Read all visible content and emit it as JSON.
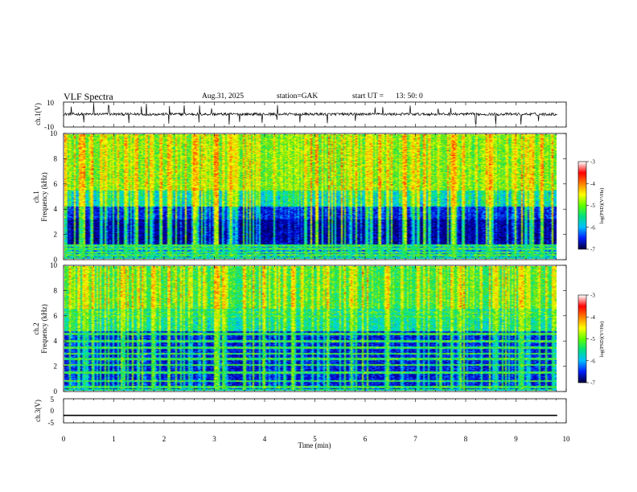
{
  "header": {
    "title": "VLF  Spectra",
    "date": "Aug.31, 2025",
    "station": "station=GAK",
    "start_label": "start  UT  =",
    "start_time": "13: 50: 0"
  },
  "colors": {
    "spectrum_palette": [
      "#000033",
      "#000080",
      "#0000d0",
      "#0050ff",
      "#00c8ff",
      "#00e8a0",
      "#30e030",
      "#a8f000",
      "#ffff00",
      "#ffa000",
      "#ff2000"
    ],
    "colorbar_palette": [
      "#000040",
      "#0020ff",
      "#00c0ff",
      "#00e080",
      "#60ff00",
      "#ffff00",
      "#ff8000",
      "#ff0000",
      "#ffffff"
    ],
    "trace": "#000000"
  },
  "chart_data": [
    {
      "type": "line",
      "panel": "ch1-waveform",
      "ylabel": "ch.1(V)",
      "ylim": [
        -10,
        10
      ],
      "yticks": [
        "10",
        "-10"
      ],
      "xlim": [
        0,
        10
      ],
      "baseline_volts": 0.3,
      "spikes_min": [
        0.15,
        0.4,
        0.6,
        0.9,
        1.3,
        1.55,
        1.65,
        2.1,
        2.4,
        2.7,
        2.95,
        3.3,
        3.5,
        3.95,
        4.25,
        4.7,
        5.25,
        5.8,
        6.2,
        6.35,
        6.9,
        7.45,
        7.7,
        8.2,
        8.6,
        9.1,
        9.45
      ]
    },
    {
      "type": "heatmap",
      "panel": "ch1-spectrogram",
      "ylabel_channel": "ch.1",
      "ylabel": "Frequency  (kHz)",
      "xlim": [
        0,
        9.82
      ],
      "ylim": [
        0,
        10
      ],
      "yticks": [
        "0",
        "2",
        "4",
        "6",
        "8",
        "10"
      ],
      "colorbar_label": "log(PSD)(V²/Hz)",
      "colorbar_ticks": [
        "-3",
        "-4",
        "-5",
        "-6",
        "-7"
      ],
      "clim": [
        -7,
        -3
      ],
      "bright_transients_min": [
        3.0,
        3.05
      ],
      "bands_khz": [
        0.3,
        0.55,
        0.85,
        1.1
      ]
    },
    {
      "type": "heatmap",
      "panel": "ch2-spectrogram",
      "ylabel_channel": "ch.2",
      "ylabel": "Frequency  (kHz)",
      "xlim": [
        0,
        9.82
      ],
      "ylim": [
        0,
        10
      ],
      "yticks": [
        "0",
        "2",
        "4",
        "6",
        "8",
        "10"
      ],
      "colorbar_label": "log(PSD)(V²/Hz)",
      "colorbar_ticks": [
        "-3",
        "-4",
        "-5",
        "-6",
        "-7"
      ],
      "clim": [
        -7,
        -3
      ],
      "bright_transients_min": [
        3.0,
        3.05
      ],
      "bands_khz": [
        0.3,
        0.8,
        1.5,
        2.1,
        2.6,
        3.0,
        3.5,
        4.0,
        4.6,
        6.0,
        6.3
      ]
    },
    {
      "type": "line",
      "panel": "ch3-waveform",
      "ylabel": "ch.3(V)",
      "ylim": [
        -5,
        5
      ],
      "yticks": [
        "5",
        "0",
        "-5"
      ],
      "xlim": [
        0,
        10
      ],
      "baseline_volts": -1.9,
      "xlabel": "Time  (min)",
      "xticks": [
        "0",
        "1",
        "2",
        "3",
        "4",
        "5",
        "6",
        "7",
        "8",
        "9",
        "10"
      ]
    }
  ]
}
